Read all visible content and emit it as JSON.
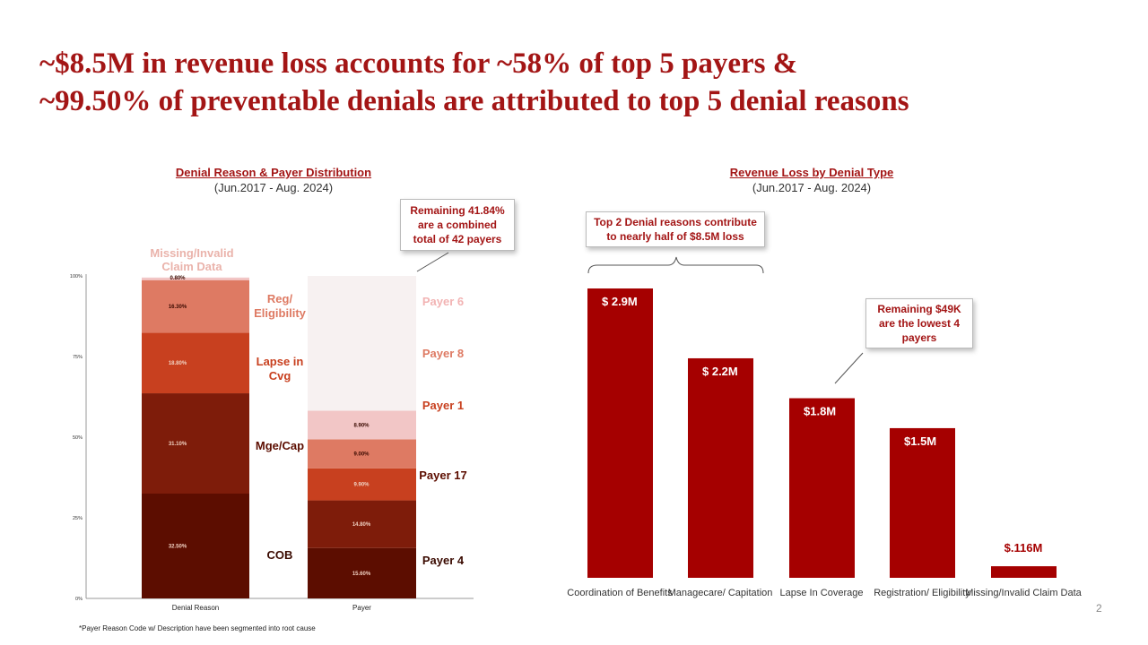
{
  "title": {
    "line1": "~$8.5M in revenue loss accounts for ~58% of top 5 payers &",
    "line2": "~99.50% of preventable denials are attributed to top 5 denial reasons"
  },
  "left_chart": {
    "title": "Denial Reason & Payer Distribution",
    "subtitle": "(Jun.2017 - Aug. 2024)",
    "callout": "Remaining 41.84% are a combined total of 42 payers"
  },
  "right_chart": {
    "title": "Revenue Loss by Denial Type",
    "subtitle": "(Jun.2017 - Aug. 2024)",
    "callout_top": "Top 2 Denial reasons contribute to nearly half of $8.5M loss",
    "callout_side": "Remaining $49K are the lowest 4 payers"
  },
  "footnote": "*Payer Reason Code w/ Description have been segmented into root cause",
  "page_number": "2",
  "colors": {
    "title": "#a31515",
    "seg1": "#5c0d00",
    "seg2": "#7e1c0a",
    "seg3": "#c8401f",
    "seg4": "#de7a63",
    "seg5": "#f2c6c6",
    "bar": "#a50000"
  },
  "chart_data": [
    {
      "type": "bar",
      "stacked": true,
      "categories": [
        "Denial Reason",
        "Payer"
      ],
      "yticks": [
        "0%",
        "25%",
        "50%",
        "75%",
        "100%"
      ],
      "ylim": [
        0,
        100
      ],
      "series": [
        {
          "stack": "Denial Reason",
          "segments": [
            {
              "value": 32.5,
              "value_label": "32.50%",
              "name": "COB"
            },
            {
              "value": 31.1,
              "value_label": "31.10%",
              "name": "Mge/Cap"
            },
            {
              "value": 18.8,
              "value_label": "18.80%",
              "name": "Lapse in Cvg"
            },
            {
              "value": 16.3,
              "value_label": "16.30%",
              "name": "Reg/ Eligibility"
            },
            {
              "value": 0.8,
              "value_label": "0.80%",
              "name": "Missing/Invalid Claim Data"
            }
          ]
        },
        {
          "stack": "Payer",
          "segments": [
            {
              "value": 15.6,
              "value_label": "15.60%",
              "name": "Payer 4"
            },
            {
              "value": 14.8,
              "value_label": "14.80%",
              "name": "Payer 17"
            },
            {
              "value": 9.9,
              "value_label": "9.90%",
              "name": "Payer 1"
            },
            {
              "value": 9.0,
              "value_label": "9.00%",
              "name": "Payer 8"
            },
            {
              "value": 8.9,
              "value_label": "8.90%",
              "name": "Payer 6"
            }
          ]
        }
      ]
    },
    {
      "type": "bar",
      "categories": [
        "Coordination of Benefits",
        "Managecare/ Capitation",
        "Lapse In Coverage",
        "Registration/ Eligibility",
        "Missing/Invalid Claim Data"
      ],
      "values": [
        2.9,
        2.2,
        1.8,
        1.5,
        0.116
      ],
      "value_labels": [
        "$ 2.9M",
        "$ 2.2M",
        "$1.8M",
        "$1.5M",
        "$.116M"
      ],
      "ylabel": "",
      "ylim": [
        0,
        3.05
      ]
    }
  ]
}
